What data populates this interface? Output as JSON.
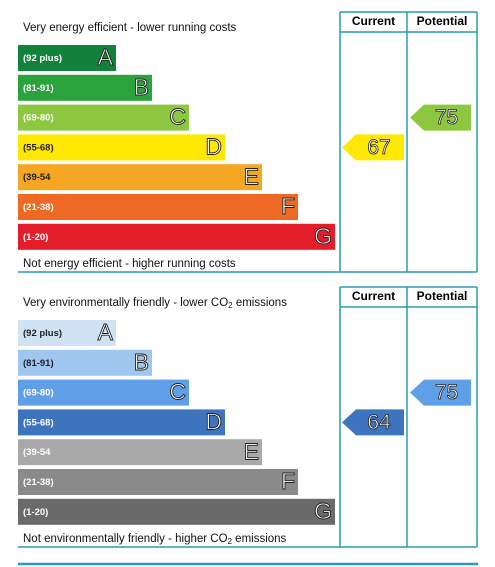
{
  "panels": [
    {
      "top_label": [
        "Very energy efficient - lower running costs"
      ],
      "bottom_label": [
        "Not energy efficient - higher running costs"
      ],
      "header_current": "Current",
      "header_potential": "Potential",
      "bands": [
        {
          "range": "(92 plus)",
          "letter": "A",
          "color": "#12823b"
        },
        {
          "range": "(81-91)",
          "letter": "B",
          "color": "#2aa33c"
        },
        {
          "range": "(69-80)",
          "letter": "C",
          "color": "#8dc63f"
        },
        {
          "range": "(55-68)",
          "letter": "D",
          "color": "#ffe800"
        },
        {
          "range": "(39-54",
          "letter": "E",
          "color": "#f5a623"
        },
        {
          "range": "(21-38)",
          "letter": "F",
          "color": "#ee6a24"
        },
        {
          "range": "(1-20)",
          "letter": "G",
          "color": "#e31d2a"
        }
      ],
      "current": 67,
      "potential": 75
    },
    {
      "top_label": [
        "Very environmentally friendly - lower CO",
        "2",
        " emissions"
      ],
      "bottom_label": [
        "Not environmentally friendly - higher CO",
        "2",
        " emissions"
      ],
      "header_current": "Current",
      "header_potential": "Potential",
      "bands": [
        {
          "range": "(92 plus)",
          "letter": "A",
          "color": "#cfe3f5"
        },
        {
          "range": "(81-91)",
          "letter": "B",
          "color": "#9fc6ee"
        },
        {
          "range": "(69-80)",
          "letter": "C",
          "color": "#5e9fe8"
        },
        {
          "range": "(55-68)",
          "letter": "D",
          "color": "#3d74bd"
        },
        {
          "range": "(39-54",
          "letter": "E",
          "color": "#a9a9a9"
        },
        {
          "range": "(21-38)",
          "letter": "F",
          "color": "#8a8a8a"
        },
        {
          "range": "(1-20)",
          "letter": "G",
          "color": "#6a6a6a"
        }
      ],
      "current": 64,
      "potential": 75
    }
  ]
}
